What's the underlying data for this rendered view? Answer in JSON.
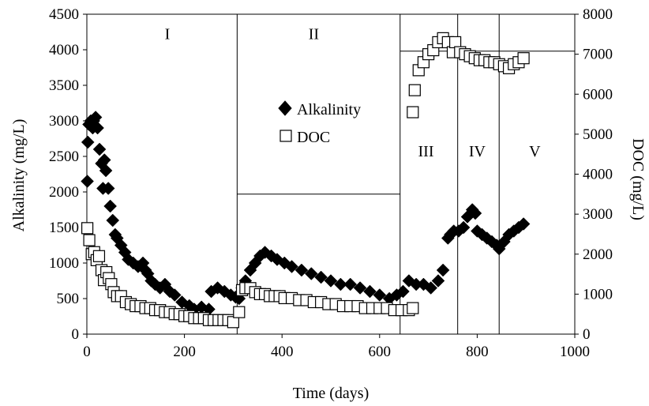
{
  "chart_data": {
    "type": "scatter",
    "title": "",
    "xlabel": "Time (days)",
    "ylabel": "Alkalinity (mg/L)",
    "y2label": "DOC (mg/L)",
    "xlim": [
      0,
      1000
    ],
    "ylim": [
      0,
      4500
    ],
    "y2lim": [
      0,
      8000
    ],
    "x_ticks": [
      "0",
      "200",
      "400",
      "600",
      "800",
      "1000"
    ],
    "y_ticks": [
      "0",
      "500",
      "1000",
      "1500",
      "2000",
      "2500",
      "3000",
      "3500",
      "4000",
      "4500"
    ],
    "y2_ticks": [
      "0",
      "1000",
      "2000",
      "3000",
      "4000",
      "5000",
      "6000",
      "7000",
      "8000"
    ],
    "grid": false,
    "legend_position": "center",
    "phase_boundaries": [
      308,
      642,
      760,
      845
    ],
    "phase_labels": [
      {
        "label": "I",
        "x": 165,
        "y": 4150
      },
      {
        "label": "II",
        "x": 465,
        "y": 4150
      },
      {
        "label": "III",
        "x": 695,
        "y": 2500
      },
      {
        "label": "IV",
        "x": 800,
        "y": 2500
      },
      {
        "label": "V",
        "x": 918,
        "y": 2500
      }
    ],
    "reference_lines": [
      {
        "axis": "y",
        "value": 1970,
        "x_from": 308,
        "x_to": 642
      },
      {
        "axis": "y",
        "value": 3980,
        "x_from": 642,
        "x_to": 1000
      }
    ],
    "series": [
      {
        "name": "Alkalinity",
        "axis": "left",
        "marker": "diamond",
        "color": "#000000",
        "points": [
          [
            1,
            2150
          ],
          [
            2,
            2700
          ],
          [
            4,
            2950
          ],
          [
            8,
            3000
          ],
          [
            12,
            2900
          ],
          [
            14,
            3000
          ],
          [
            18,
            3050
          ],
          [
            22,
            2900
          ],
          [
            26,
            2600
          ],
          [
            30,
            2400
          ],
          [
            33,
            2050
          ],
          [
            36,
            2450
          ],
          [
            39,
            2300
          ],
          [
            44,
            2050
          ],
          [
            48,
            1800
          ],
          [
            53,
            1600
          ],
          [
            58,
            1400
          ],
          [
            62,
            1350
          ],
          [
            70,
            1250
          ],
          [
            78,
            1150
          ],
          [
            85,
            1050
          ],
          [
            95,
            1000
          ],
          [
            105,
            950
          ],
          [
            115,
            1000
          ],
          [
            120,
            900
          ],
          [
            125,
            850
          ],
          [
            132,
            750
          ],
          [
            140,
            700
          ],
          [
            150,
            650
          ],
          [
            160,
            700
          ],
          [
            170,
            600
          ],
          [
            180,
            550
          ],
          [
            195,
            450
          ],
          [
            210,
            400
          ],
          [
            220,
            350
          ],
          [
            235,
            380
          ],
          [
            250,
            350
          ],
          [
            255,
            600
          ],
          [
            268,
            650
          ],
          [
            282,
            600
          ],
          [
            295,
            550
          ],
          [
            305,
            520
          ],
          [
            312,
            500
          ],
          [
            318,
            650
          ],
          [
            325,
            750
          ],
          [
            335,
            900
          ],
          [
            345,
            1000
          ],
          [
            355,
            1100
          ],
          [
            365,
            1150
          ],
          [
            378,
            1100
          ],
          [
            390,
            1050
          ],
          [
            405,
            1000
          ],
          [
            420,
            950
          ],
          [
            440,
            900
          ],
          [
            460,
            850
          ],
          [
            480,
            800
          ],
          [
            500,
            750
          ],
          [
            520,
            700
          ],
          [
            540,
            700
          ],
          [
            560,
            650
          ],
          [
            580,
            600
          ],
          [
            600,
            550
          ],
          [
            620,
            500
          ],
          [
            635,
            550
          ],
          [
            648,
            600
          ],
          [
            660,
            750
          ],
          [
            675,
            700
          ],
          [
            690,
            700
          ],
          [
            705,
            650
          ],
          [
            720,
            750
          ],
          [
            730,
            900
          ],
          [
            740,
            1350
          ],
          [
            745,
            1400
          ],
          [
            752,
            1450
          ],
          [
            762,
            1450
          ],
          [
            772,
            1500
          ],
          [
            780,
            1650
          ],
          [
            790,
            1750
          ],
          [
            796,
            1700
          ],
          [
            800,
            1450
          ],
          [
            810,
            1400
          ],
          [
            820,
            1350
          ],
          [
            830,
            1300
          ],
          [
            840,
            1250
          ],
          [
            845,
            1200
          ],
          [
            855,
            1300
          ],
          [
            865,
            1400
          ],
          [
            875,
            1450
          ],
          [
            885,
            1500
          ],
          [
            895,
            1550
          ]
        ]
      },
      {
        "name": "DOC",
        "axis": "right",
        "marker": "square",
        "color": "#000000",
        "points": [
          [
            1,
            2650
          ],
          [
            5,
            2350
          ],
          [
            10,
            2000
          ],
          [
            15,
            2050
          ],
          [
            20,
            1850
          ],
          [
            25,
            1950
          ],
          [
            30,
            1600
          ],
          [
            35,
            1350
          ],
          [
            40,
            1550
          ],
          [
            45,
            1400
          ],
          [
            50,
            1250
          ],
          [
            55,
            1050
          ],
          [
            62,
            950
          ],
          [
            70,
            950
          ],
          [
            80,
            800
          ],
          [
            90,
            750
          ],
          [
            100,
            700
          ],
          [
            110,
            700
          ],
          [
            120,
            650
          ],
          [
            130,
            650
          ],
          [
            140,
            600
          ],
          [
            150,
            600
          ],
          [
            160,
            550
          ],
          [
            170,
            550
          ],
          [
            180,
            500
          ],
          [
            190,
            500
          ],
          [
            200,
            450
          ],
          [
            210,
            450
          ],
          [
            220,
            400
          ],
          [
            230,
            400
          ],
          [
            240,
            400
          ],
          [
            250,
            350
          ],
          [
            260,
            350
          ],
          [
            270,
            350
          ],
          [
            280,
            350
          ],
          [
            290,
            350
          ],
          [
            300,
            300
          ],
          [
            312,
            550
          ],
          [
            318,
            1100
          ],
          [
            325,
            1150
          ],
          [
            335,
            1150
          ],
          [
            345,
            1050
          ],
          [
            355,
            1000
          ],
          [
            365,
            1000
          ],
          [
            375,
            950
          ],
          [
            385,
            950
          ],
          [
            395,
            950
          ],
          [
            405,
            900
          ],
          [
            420,
            900
          ],
          [
            435,
            850
          ],
          [
            450,
            850
          ],
          [
            465,
            800
          ],
          [
            480,
            800
          ],
          [
            495,
            750
          ],
          [
            510,
            750
          ],
          [
            525,
            700
          ],
          [
            540,
            700
          ],
          [
            555,
            700
          ],
          [
            570,
            650
          ],
          [
            585,
            650
          ],
          [
            600,
            650
          ],
          [
            615,
            650
          ],
          [
            630,
            600
          ],
          [
            645,
            600
          ],
          [
            660,
            600
          ],
          [
            668,
            650
          ],
          [
            668,
            5550
          ],
          [
            672,
            6100
          ],
          [
            680,
            6600
          ],
          [
            690,
            6800
          ],
          [
            700,
            7000
          ],
          [
            710,
            7100
          ],
          [
            720,
            7300
          ],
          [
            730,
            7400
          ],
          [
            740,
            7300
          ],
          [
            750,
            7050
          ],
          [
            755,
            7300
          ],
          [
            765,
            7050
          ],
          [
            775,
            7000
          ],
          [
            785,
            6950
          ],
          [
            795,
            6900
          ],
          [
            805,
            6850
          ],
          [
            815,
            6850
          ],
          [
            825,
            6800
          ],
          [
            835,
            6800
          ],
          [
            845,
            6750
          ],
          [
            855,
            6700
          ],
          [
            865,
            6650
          ],
          [
            875,
            6750
          ],
          [
            885,
            6800
          ],
          [
            895,
            6900
          ]
        ]
      }
    ]
  }
}
